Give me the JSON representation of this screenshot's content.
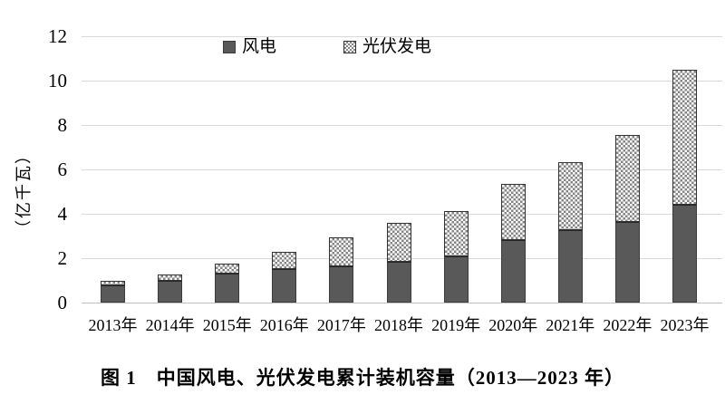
{
  "figure": {
    "caption": "图 1　中国风电、光伏发电累计装机容量（2013—2023 年）"
  },
  "chart_data": {
    "type": "bar",
    "stacked": true,
    "title": "",
    "xlabel": "",
    "ylabel": "（亿千瓦）",
    "categories": [
      "2013年",
      "2014年",
      "2015年",
      "2016年",
      "2017年",
      "2018年",
      "2019年",
      "2020年",
      "2021年",
      "2022年",
      "2023年"
    ],
    "series": [
      {
        "name": "风电",
        "style": "solid",
        "color": "#595959",
        "values": [
          0.76,
          0.96,
          1.29,
          1.49,
          1.64,
          1.84,
          2.1,
          2.81,
          3.28,
          3.65,
          4.41
        ]
      },
      {
        "name": "光伏发电",
        "style": "checker-pattern",
        "color": "#858585",
        "values": [
          0.19,
          0.28,
          0.43,
          0.77,
          1.3,
          1.74,
          2.04,
          2.53,
          3.06,
          3.93,
          6.09
        ]
      }
    ],
    "totals": [
      0.95,
      1.24,
      1.72,
      2.26,
      2.94,
      3.58,
      4.14,
      5.34,
      6.34,
      7.58,
      10.5
    ],
    "ylim": [
      0,
      12
    ],
    "yticks": [
      0,
      2,
      4,
      6,
      8,
      10,
      12
    ],
    "grid": true,
    "legend_position": "top-center",
    "colors": {
      "wind_fill": "#595959",
      "solar_pattern_dot": "#858585",
      "gridline": "#d9d9d9",
      "axis_line": "#bfbfbf",
      "text": "#000000"
    }
  }
}
